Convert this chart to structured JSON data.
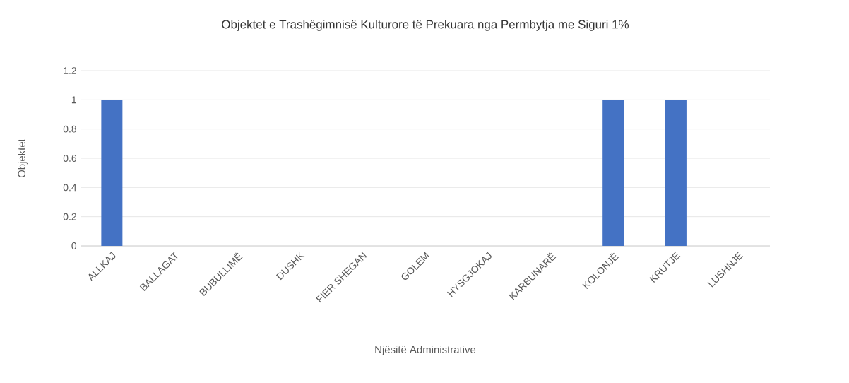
{
  "chart_data": {
    "type": "bar",
    "title": "Objektet e Trashëgimnisë Kulturore të Prekuara nga Permbytja me Siguri 1%",
    "xlabel": "Njësitë Administrative",
    "ylabel": "Objektet",
    "categories": [
      "ALLKAJ",
      "BALLAGAT",
      "BUBULLIMË",
      "DUSHK",
      "FIER SHEGAN",
      "GOLEM",
      "HYSGJOKAJ",
      "KARBUNARË",
      "KOLONJË",
      "KRUTJE",
      "LUSHNJE"
    ],
    "values": [
      1,
      0,
      0,
      0,
      0,
      0,
      0,
      0,
      1,
      1,
      0
    ],
    "color": "#4472c4",
    "ylim": [
      0,
      1.2
    ],
    "yticks": [
      0,
      0.2,
      0.4,
      0.6,
      0.8,
      1,
      1.2
    ],
    "grid": "y"
  }
}
